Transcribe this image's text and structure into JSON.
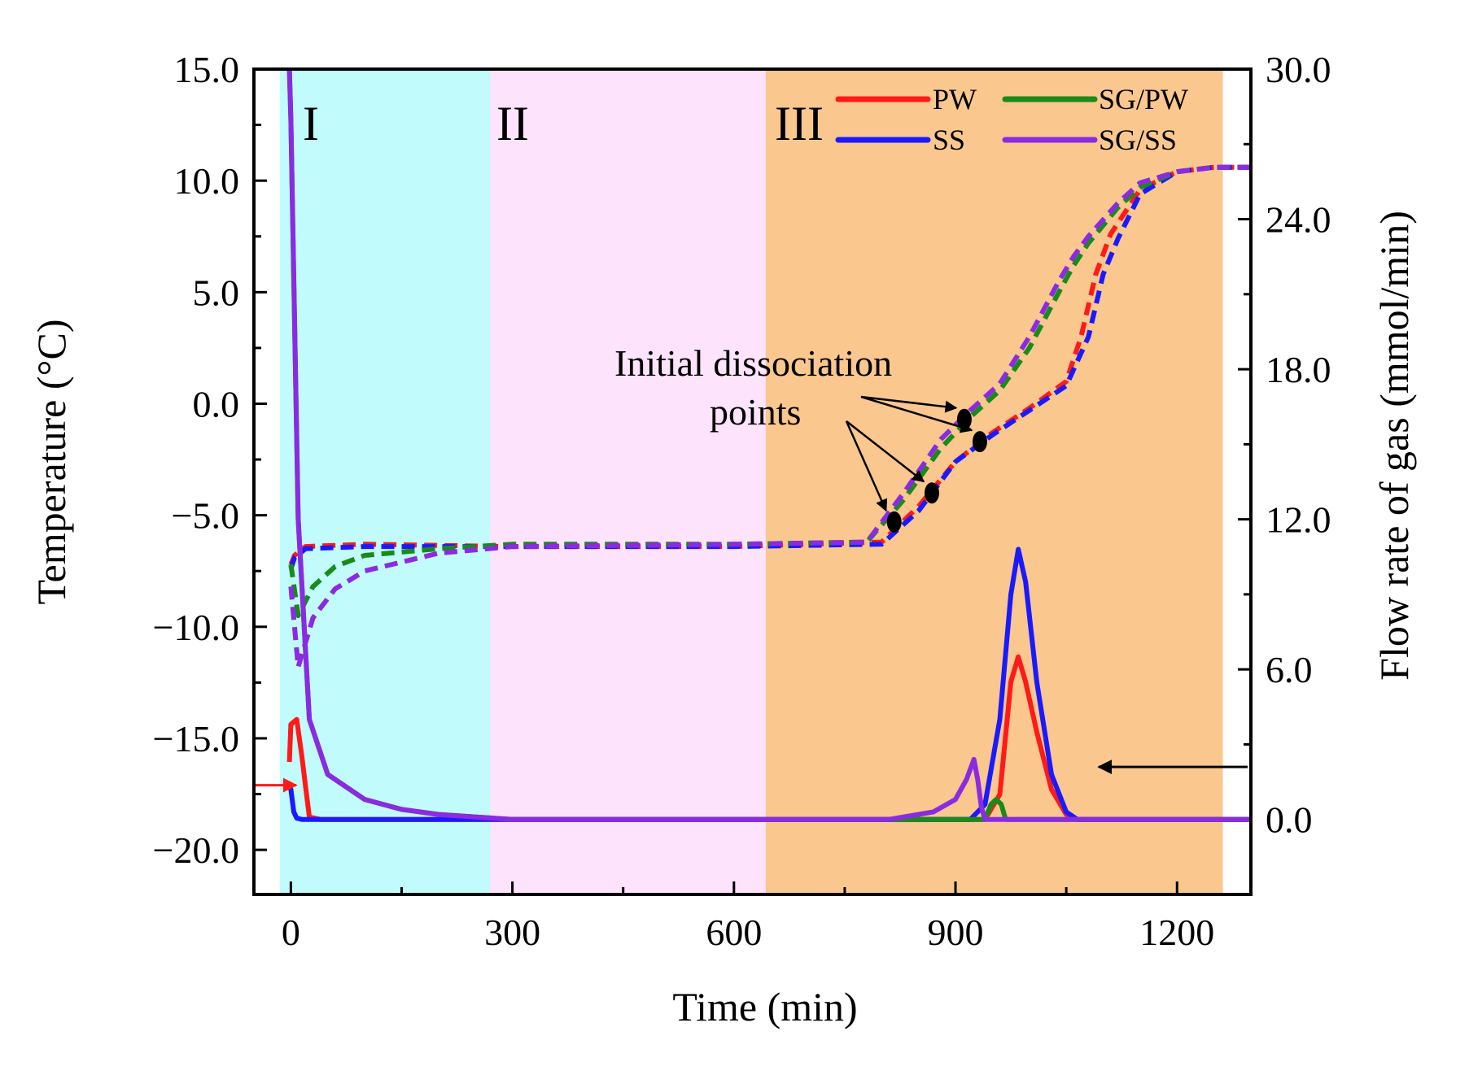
{
  "chart_data": {
    "type": "line",
    "xlabel": "Time (min)",
    "ylabel_left": "Temperature (°C)",
    "ylabel_right": "Flow rate of gas (mmol/min)",
    "xlim": [
      -50,
      1300
    ],
    "ylim_left": [
      -22,
      15
    ],
    "ylim_right": [
      -3.0,
      30.0
    ],
    "x_ticks": [
      0,
      300,
      600,
      900,
      1200
    ],
    "x_tick_labels": [
      "0",
      "300",
      "600",
      "900",
      "1200"
    ],
    "y_left_ticks": [
      15,
      10,
      5,
      0,
      -5,
      -10,
      -15,
      -20
    ],
    "y_left_tick_labels": [
      "15.0",
      "10.0",
      "5.0",
      "0.0",
      "−5.0",
      "−10.0",
      "−15.0",
      "−20.0"
    ],
    "y_right_ticks": [
      30,
      24,
      18,
      12,
      6,
      0
    ],
    "y_right_tick_labels": [
      "30.0",
      "24.0",
      "18.0",
      "12.0",
      "6.0",
      "0.0"
    ],
    "regions": [
      {
        "label": "I",
        "x_start": -15,
        "x_end": 270,
        "color": "#c2fbfb"
      },
      {
        "label": "II",
        "x_start": 270,
        "x_end": 643,
        "color": "#fde3fb"
      },
      {
        "label": "III",
        "x_start": 643,
        "x_end": 1262,
        "color": "#fac78e"
      }
    ],
    "annotation": "Initial dissociation points",
    "annotation_lines": [
      "Initial dissociation",
      "points"
    ],
    "series": [
      {
        "name": "PW",
        "color": "#ff1a1a",
        "temperature": {
          "x": [
            0,
            5,
            20,
            100,
            300,
            600,
            800,
            850,
            900,
            950,
            1000,
            1050,
            1070,
            1090,
            1110,
            1150,
            1200,
            1250,
            1300
          ],
          "y": [
            -7.2,
            -6.8,
            -6.4,
            -6.3,
            -6.4,
            -6.4,
            -6.2,
            -4.6,
            -2.6,
            -1.3,
            -0.2,
            1.0,
            3.0,
            5.8,
            7.6,
            9.6,
            10.4,
            10.6,
            10.6
          ]
        },
        "flow": {
          "x": [
            -2,
            0,
            8,
            15,
            20,
            25,
            40,
            300,
            940,
            960,
            975,
            985,
            995,
            1010,
            1030,
            1050,
            1065,
            1300
          ],
          "y": [
            2.3,
            3.8,
            4.0,
            2.5,
            1.3,
            0.1,
            0.0,
            0.0,
            0.0,
            1.0,
            5.5,
            6.5,
            5.5,
            3.5,
            1.2,
            0.2,
            0.0,
            0.0
          ]
        }
      },
      {
        "name": "SS",
        "color": "#1a1aff",
        "temperature": {
          "x": [
            0,
            5,
            20,
            100,
            300,
            600,
            800,
            850,
            900,
            950,
            1000,
            1050,
            1080,
            1100,
            1120,
            1150,
            1200,
            1250,
            1300
          ],
          "y": [
            -7.4,
            -6.9,
            -6.5,
            -6.4,
            -6.4,
            -6.4,
            -6.3,
            -4.8,
            -2.6,
            -1.4,
            -0.3,
            0.8,
            3.0,
            5.8,
            7.4,
            9.4,
            10.4,
            10.6,
            10.6
          ]
        },
        "flow": {
          "x": [
            -2,
            0,
            4,
            8,
            15,
            30,
            300,
            920,
            940,
            960,
            975,
            985,
            995,
            1010,
            1030,
            1050,
            1065,
            1300
          ],
          "y": [
            1.3,
            1.2,
            0.3,
            0.05,
            0.0,
            0.0,
            0.0,
            0.0,
            0.6,
            4.0,
            9.0,
            10.8,
            9.5,
            5.5,
            1.8,
            0.3,
            0.0,
            0.0
          ]
        }
      },
      {
        "name": "SG/PW",
        "color": "#1a8a1a",
        "temperature": {
          "x": [
            0,
            10,
            30,
            60,
            100,
            200,
            300,
            600,
            780,
            830,
            880,
            920,
            960,
            1000,
            1040,
            1060,
            1080,
            1120,
            1150,
            1200,
            1250,
            1300
          ],
          "y": [
            -7.2,
            -9.5,
            -8.2,
            -7.3,
            -6.8,
            -6.5,
            -6.3,
            -6.3,
            -6.2,
            -4.3,
            -2.0,
            -0.6,
            0.6,
            2.5,
            5.0,
            6.2,
            7.2,
            8.8,
            9.7,
            10.4,
            10.6,
            10.6
          ]
        },
        "flow": {
          "x": [
            -2,
            0,
            10,
            25,
            50,
            100,
            150,
            200,
            300,
            940,
            948,
            955,
            962,
            968,
            1300
          ],
          "y": [
            30.0,
            28.0,
            12.0,
            4.0,
            1.8,
            0.8,
            0.4,
            0.2,
            0.0,
            0.0,
            0.6,
            0.8,
            0.6,
            0.0,
            0.0
          ]
        }
      },
      {
        "name": "SG/SS",
        "color": "#8a2be2",
        "temperature": {
          "x": [
            0,
            10,
            30,
            60,
            100,
            200,
            300,
            600,
            780,
            830,
            880,
            920,
            960,
            1000,
            1040,
            1060,
            1080,
            1120,
            1150,
            1200,
            1250,
            1300
          ],
          "y": [
            -8.2,
            -11.8,
            -9.6,
            -8.3,
            -7.5,
            -6.7,
            -6.4,
            -6.3,
            -6.2,
            -4.0,
            -1.6,
            -0.3,
            0.9,
            3.0,
            5.5,
            6.6,
            7.5,
            9.0,
            9.9,
            10.4,
            10.6,
            10.6
          ]
        },
        "flow": {
          "x": [
            -2,
            0,
            10,
            25,
            50,
            100,
            150,
            200,
            300,
            810,
            870,
            900,
            915,
            925,
            930,
            935,
            940,
            1300
          ],
          "y": [
            30.0,
            28.0,
            12.0,
            4.0,
            1.8,
            0.8,
            0.4,
            0.2,
            0.0,
            0.0,
            0.3,
            0.8,
            1.6,
            2.4,
            1.6,
            0.5,
            0.0,
            0.0
          ]
        }
      }
    ],
    "dissociation_points": [
      {
        "x": 817,
        "temperature": -5.3
      },
      {
        "x": 868,
        "temperature": -4.0
      },
      {
        "x": 912,
        "temperature": -0.7
      },
      {
        "x": 933,
        "temperature": -1.7
      }
    ]
  }
}
